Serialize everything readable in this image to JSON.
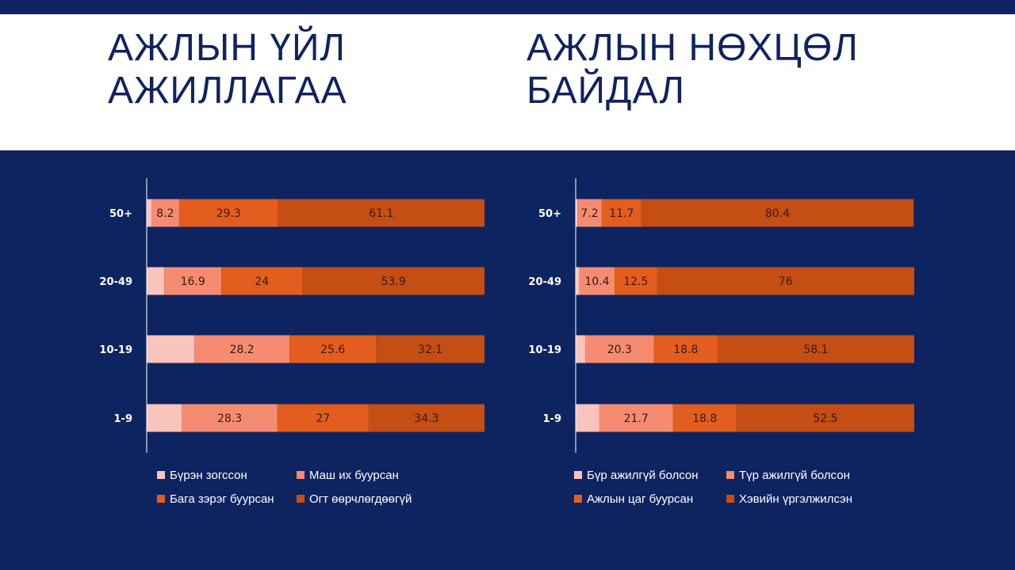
{
  "titles": {
    "left": [
      "АЖЛЫН ҮЙЛ",
      "АЖИЛЛАГАА"
    ],
    "right": [
      "АЖЛЫН НӨХЦӨЛ",
      "БАЙДАЛ"
    ]
  },
  "colors": {
    "background": "#0e2460",
    "title_text": "#10235f",
    "axis_line": "#ffffff",
    "series": [
      "#f9c4bc",
      "#f58c72",
      "#e35e1e",
      "#c44e14"
    ],
    "label_dark": "#3a1a10"
  },
  "chart_data": [
    {
      "type": "bar",
      "orientation": "horizontal",
      "stacked": true,
      "categories": [
        "50+",
        "20-49",
        "10-19",
        "1-9"
      ],
      "series": [
        {
          "name": "Бүрэн зогссон",
          "values": [
            1.4,
            5.2,
            14.1,
            10.4
          ]
        },
        {
          "name": "Маш их буурсан",
          "values": [
            8.2,
            16.9,
            28.2,
            28.3
          ]
        },
        {
          "name": "Бага зэрэг буурсан",
          "values": [
            29.3,
            24,
            25.6,
            27
          ]
        },
        {
          "name": "Огт өөрчлөгдөөгүй",
          "values": [
            61.1,
            53.9,
            32.1,
            34.3
          ]
        }
      ],
      "data_labels": [
        [
          "",
          "",
          "",
          ""
        ],
        [
          "8.2",
          "16.9",
          "28.2",
          "28.3"
        ],
        [
          "29.3",
          "24",
          "25.6",
          "27"
        ],
        [
          "61.1",
          "53.9",
          "32.1",
          "34.3"
        ]
      ],
      "xlim": [
        0,
        100
      ],
      "grid": false,
      "legend_position": "bottom"
    },
    {
      "type": "bar",
      "orientation": "horizontal",
      "stacked": true,
      "categories": [
        "50+",
        "20-49",
        "10-19",
        "1-9"
      ],
      "series": [
        {
          "name": "Бүр ажилгүй болсон",
          "values": [
            0.5,
            1.1,
            2.8,
            7.0
          ]
        },
        {
          "name": "Түр ажилгүй болсон",
          "values": [
            7.2,
            10.4,
            20.3,
            21.7
          ]
        },
        {
          "name": "Ажлын цаг буурсан",
          "values": [
            11.7,
            12.5,
            18.8,
            18.8
          ]
        },
        {
          "name": "Хэвийн үргэлжилсэн",
          "values": [
            80.4,
            76,
            58.1,
            52.5
          ]
        }
      ],
      "data_labels": [
        [
          "",
          "",
          "",
          ""
        ],
        [
          "7.2",
          "10.4",
          "20.3",
          "21.7"
        ],
        [
          "11.7",
          "12.5",
          "18.8",
          "18.8"
        ],
        [
          "80.4",
          "76",
          "58.1",
          "52.5"
        ]
      ],
      "xlim": [
        0,
        100
      ],
      "grid": false,
      "legend_position": "bottom"
    }
  ]
}
